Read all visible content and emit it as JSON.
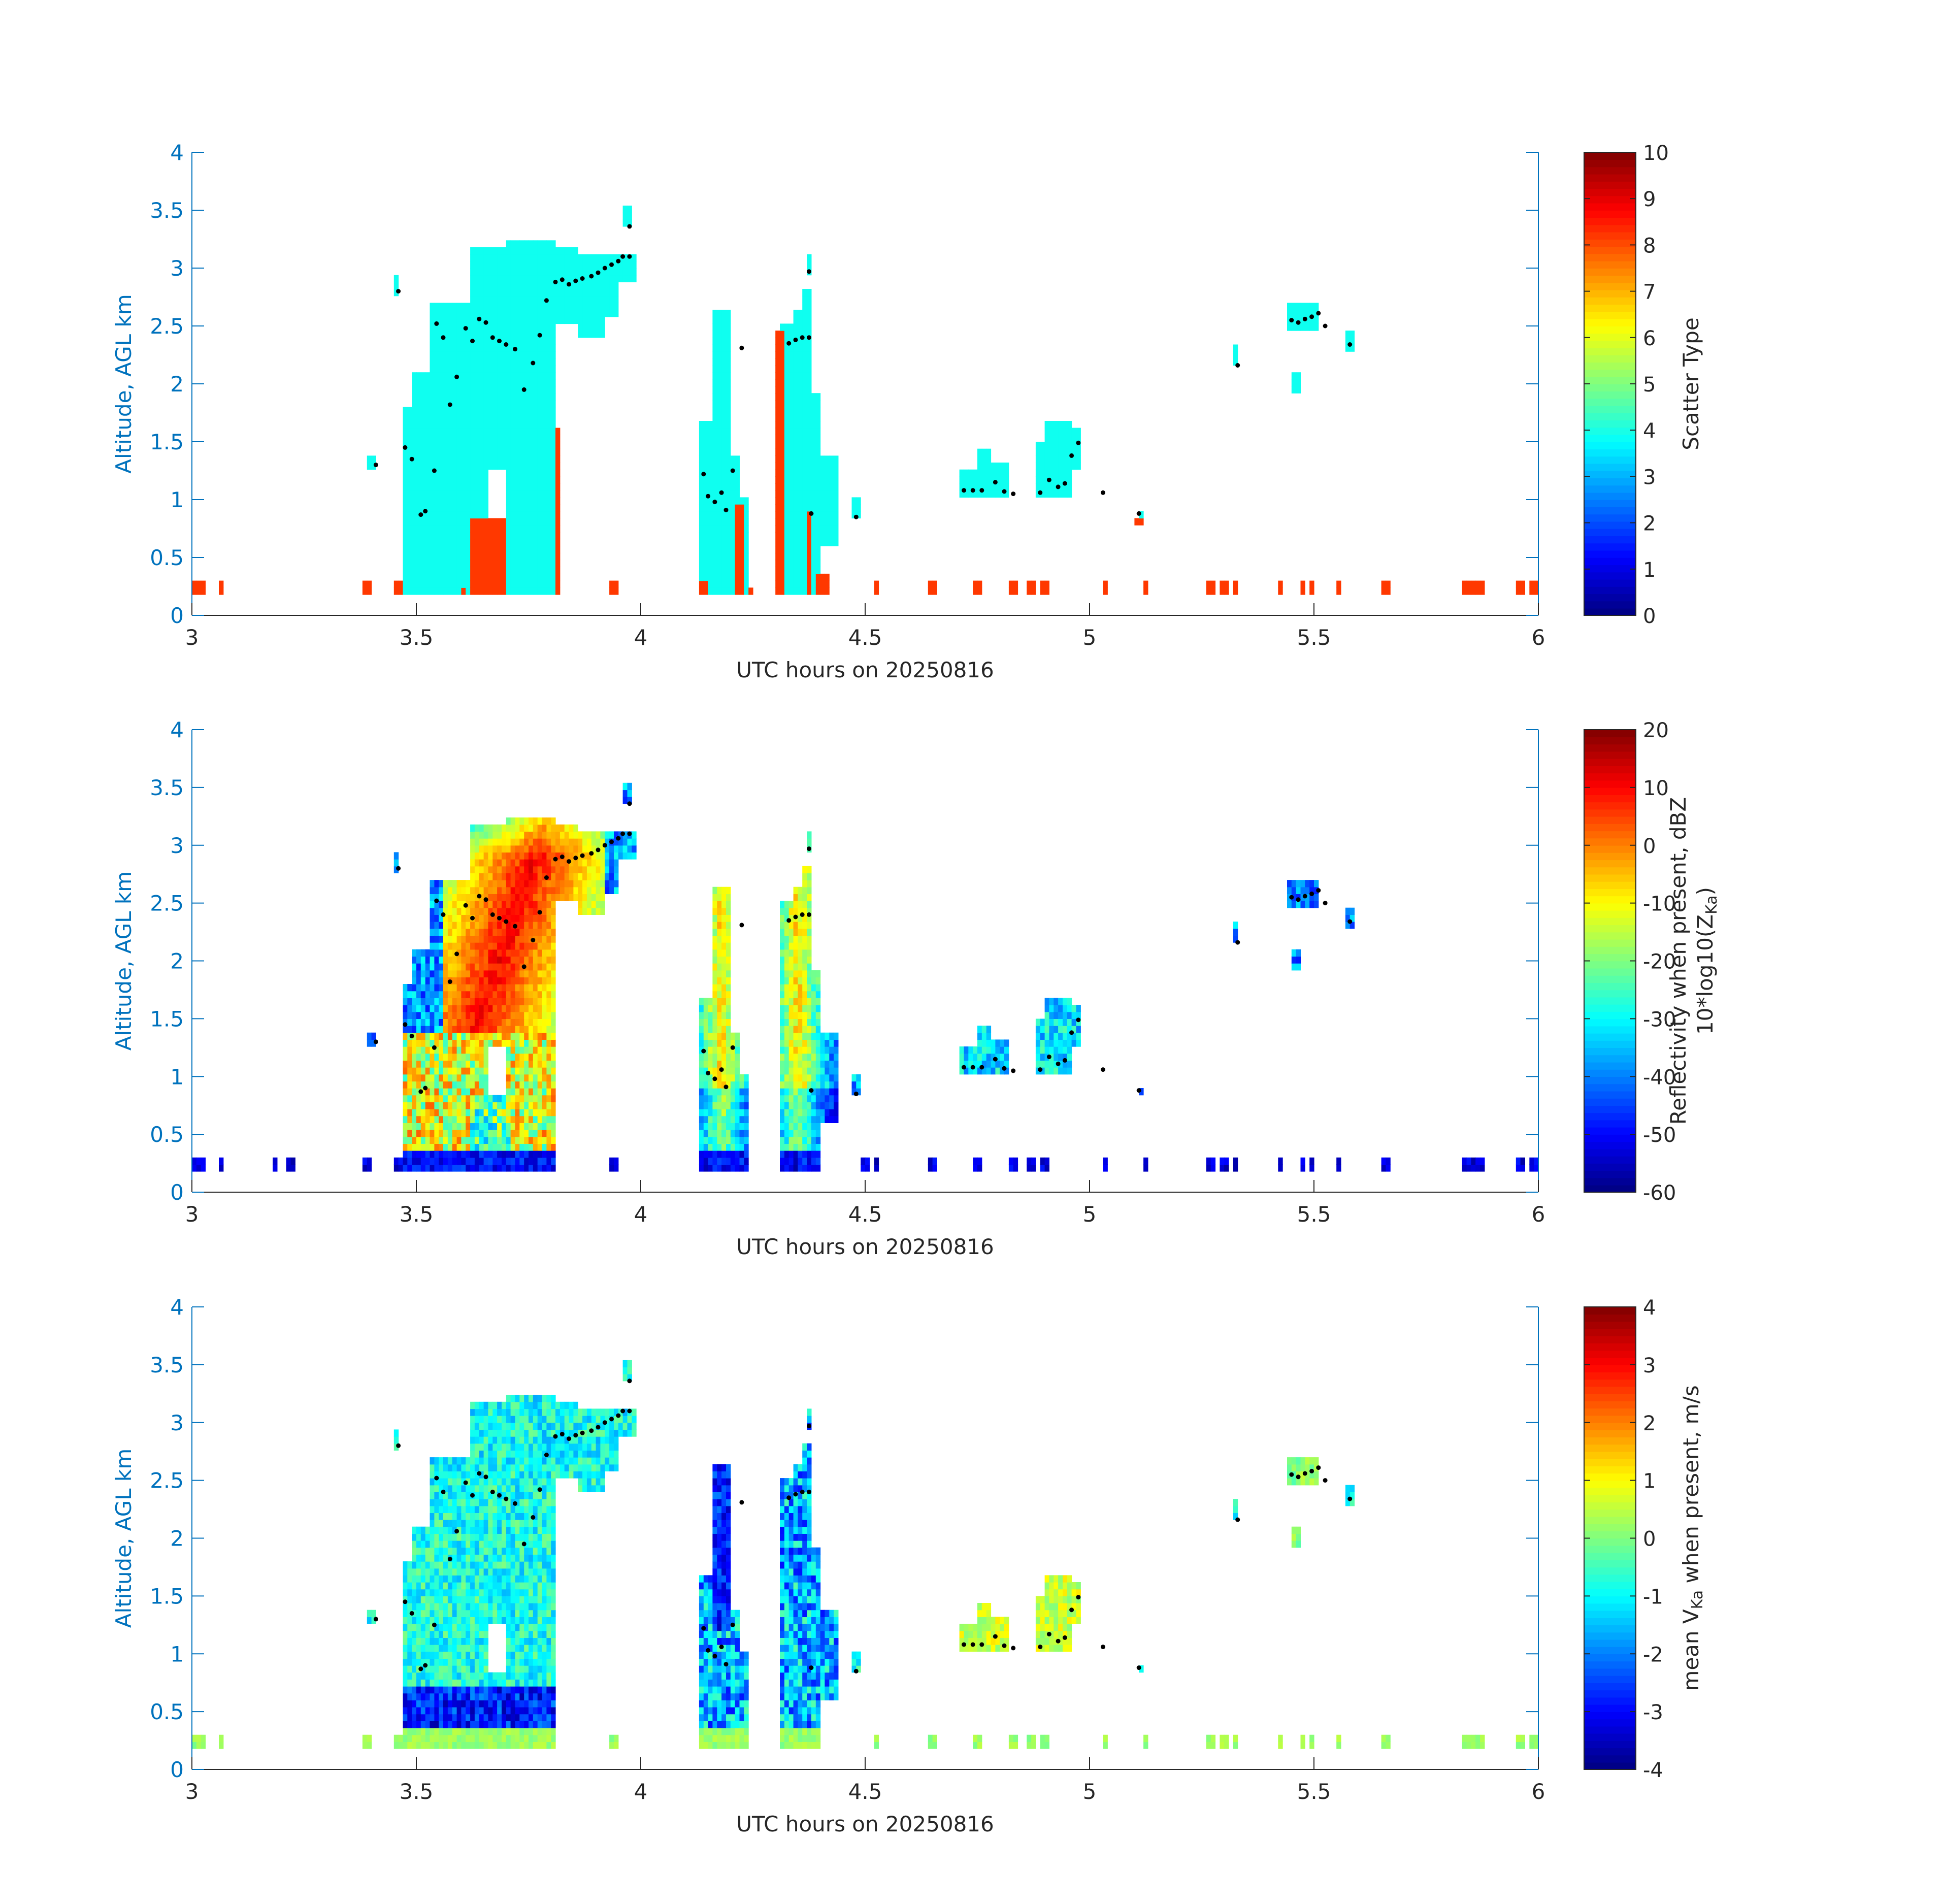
{
  "chart_data": [
    {
      "type": "heatmap",
      "xlabel": "UTC hours on 20250816",
      "ylabel": "Altitude, AGL km",
      "xlim": [
        3,
        6
      ],
      "ylim": [
        0,
        4
      ],
      "xticks": [
        "3",
        "3.5",
        "4",
        "4.5",
        "5",
        "5.5",
        "6"
      ],
      "yticks": [
        "0",
        "0.5",
        "1",
        "1.5",
        "2",
        "2.5",
        "3",
        "3.5",
        "4"
      ],
      "colorbar": {
        "label": "Scatter Type",
        "range": [
          0,
          10
        ],
        "ticks": [
          "0",
          "1",
          "2",
          "3",
          "4",
          "5",
          "6",
          "7",
          "8",
          "9",
          "10"
        ],
        "colormap": "jet"
      },
      "fill": "scatter-type"
    },
    {
      "type": "heatmap",
      "xlabel": "UTC hours on 20250816",
      "ylabel": "Altitude, AGL km",
      "xlim": [
        3,
        6
      ],
      "ylim": [
        0,
        4
      ],
      "xticks": [
        "3",
        "3.5",
        "4",
        "4.5",
        "5",
        "5.5",
        "6"
      ],
      "yticks": [
        "0",
        "0.5",
        "1",
        "1.5",
        "2",
        "2.5",
        "3",
        "3.5",
        "4"
      ],
      "colorbar": {
        "label": "Reflectivity when present, dBZ",
        "label2_pre": "10*log10(Z",
        "label2_sub": "Ka",
        "label2_post": ")",
        "range": [
          -60,
          20
        ],
        "ticks": [
          "-60",
          "-50",
          "-40",
          "-30",
          "-20",
          "-10",
          "0",
          "10",
          "20"
        ],
        "colormap": "jet"
      },
      "fill": "reflectivity"
    },
    {
      "type": "heatmap",
      "xlabel": "UTC hours on 20250816",
      "ylabel": "Altitude, AGL km",
      "xlim": [
        3,
        6
      ],
      "ylim": [
        0,
        4
      ],
      "xticks": [
        "3",
        "3.5",
        "4",
        "4.5",
        "5",
        "5.5",
        "6"
      ],
      "yticks": [
        "0",
        "0.5",
        "1",
        "1.5",
        "2",
        "2.5",
        "3",
        "3.5",
        "4"
      ],
      "colorbar": {
        "label_pre": "mean V",
        "label_sub": "Ka",
        "label_post": " when present, m/s",
        "range": [
          -4,
          4
        ],
        "ticks": [
          "-4",
          "-3",
          "-2",
          "-1",
          "0",
          "1",
          "2",
          "3",
          "4"
        ],
        "colormap": "jet"
      },
      "fill": "velocity"
    }
  ],
  "cloud_base_points": [
    [
      3.41,
      1.3
    ],
    [
      3.46,
      2.8
    ],
    [
      3.475,
      1.45
    ],
    [
      3.49,
      1.35
    ],
    [
      3.51,
      0.87
    ],
    [
      3.52,
      0.9
    ],
    [
      3.54,
      1.25
    ],
    [
      3.545,
      2.52
    ],
    [
      3.56,
      2.4
    ],
    [
      3.575,
      1.82
    ],
    [
      3.59,
      2.06
    ],
    [
      3.61,
      2.48
    ],
    [
      3.625,
      2.37
    ],
    [
      3.64,
      2.56
    ],
    [
      3.655,
      2.53
    ],
    [
      3.67,
      2.4
    ],
    [
      3.685,
      2.37
    ],
    [
      3.7,
      2.34
    ],
    [
      3.72,
      2.3
    ],
    [
      3.74,
      1.95
    ],
    [
      3.76,
      2.18
    ],
    [
      3.775,
      2.42
    ],
    [
      3.79,
      2.72
    ],
    [
      3.81,
      2.88
    ],
    [
      3.825,
      2.9
    ],
    [
      3.84,
      2.86
    ],
    [
      3.855,
      2.89
    ],
    [
      3.87,
      2.91
    ],
    [
      3.89,
      2.93
    ],
    [
      3.905,
      2.96
    ],
    [
      3.92,
      3.0
    ],
    [
      3.935,
      3.03
    ],
    [
      3.95,
      3.06
    ],
    [
      3.96,
      3.1
    ],
    [
      3.975,
      3.1
    ],
    [
      3.975,
      3.36
    ],
    [
      4.14,
      1.22
    ],
    [
      4.15,
      1.03
    ],
    [
      4.165,
      0.98
    ],
    [
      4.18,
      1.06
    ],
    [
      4.19,
      0.91
    ],
    [
      4.205,
      1.25
    ],
    [
      4.225,
      2.31
    ],
    [
      4.33,
      2.35
    ],
    [
      4.345,
      2.38
    ],
    [
      4.36,
      2.4
    ],
    [
      4.375,
      2.4
    ],
    [
      4.375,
      2.97
    ],
    [
      4.38,
      0.88
    ],
    [
      4.48,
      0.85
    ],
    [
      4.72,
      1.08
    ],
    [
      4.74,
      1.08
    ],
    [
      4.76,
      1.08
    ],
    [
      4.79,
      1.15
    ],
    [
      4.81,
      1.07
    ],
    [
      4.83,
      1.05
    ],
    [
      4.89,
      1.06
    ],
    [
      4.91,
      1.17
    ],
    [
      4.93,
      1.11
    ],
    [
      4.945,
      1.14
    ],
    [
      4.96,
      1.38
    ],
    [
      4.975,
      1.49
    ],
    [
      5.03,
      1.06
    ],
    [
      5.11,
      0.88
    ],
    [
      5.33,
      2.16
    ],
    [
      5.45,
      2.55
    ],
    [
      5.465,
      2.53
    ],
    [
      5.48,
      2.56
    ],
    [
      5.495,
      2.58
    ],
    [
      5.51,
      2.61
    ],
    [
      5.525,
      2.5
    ],
    [
      5.58,
      2.34
    ]
  ]
}
